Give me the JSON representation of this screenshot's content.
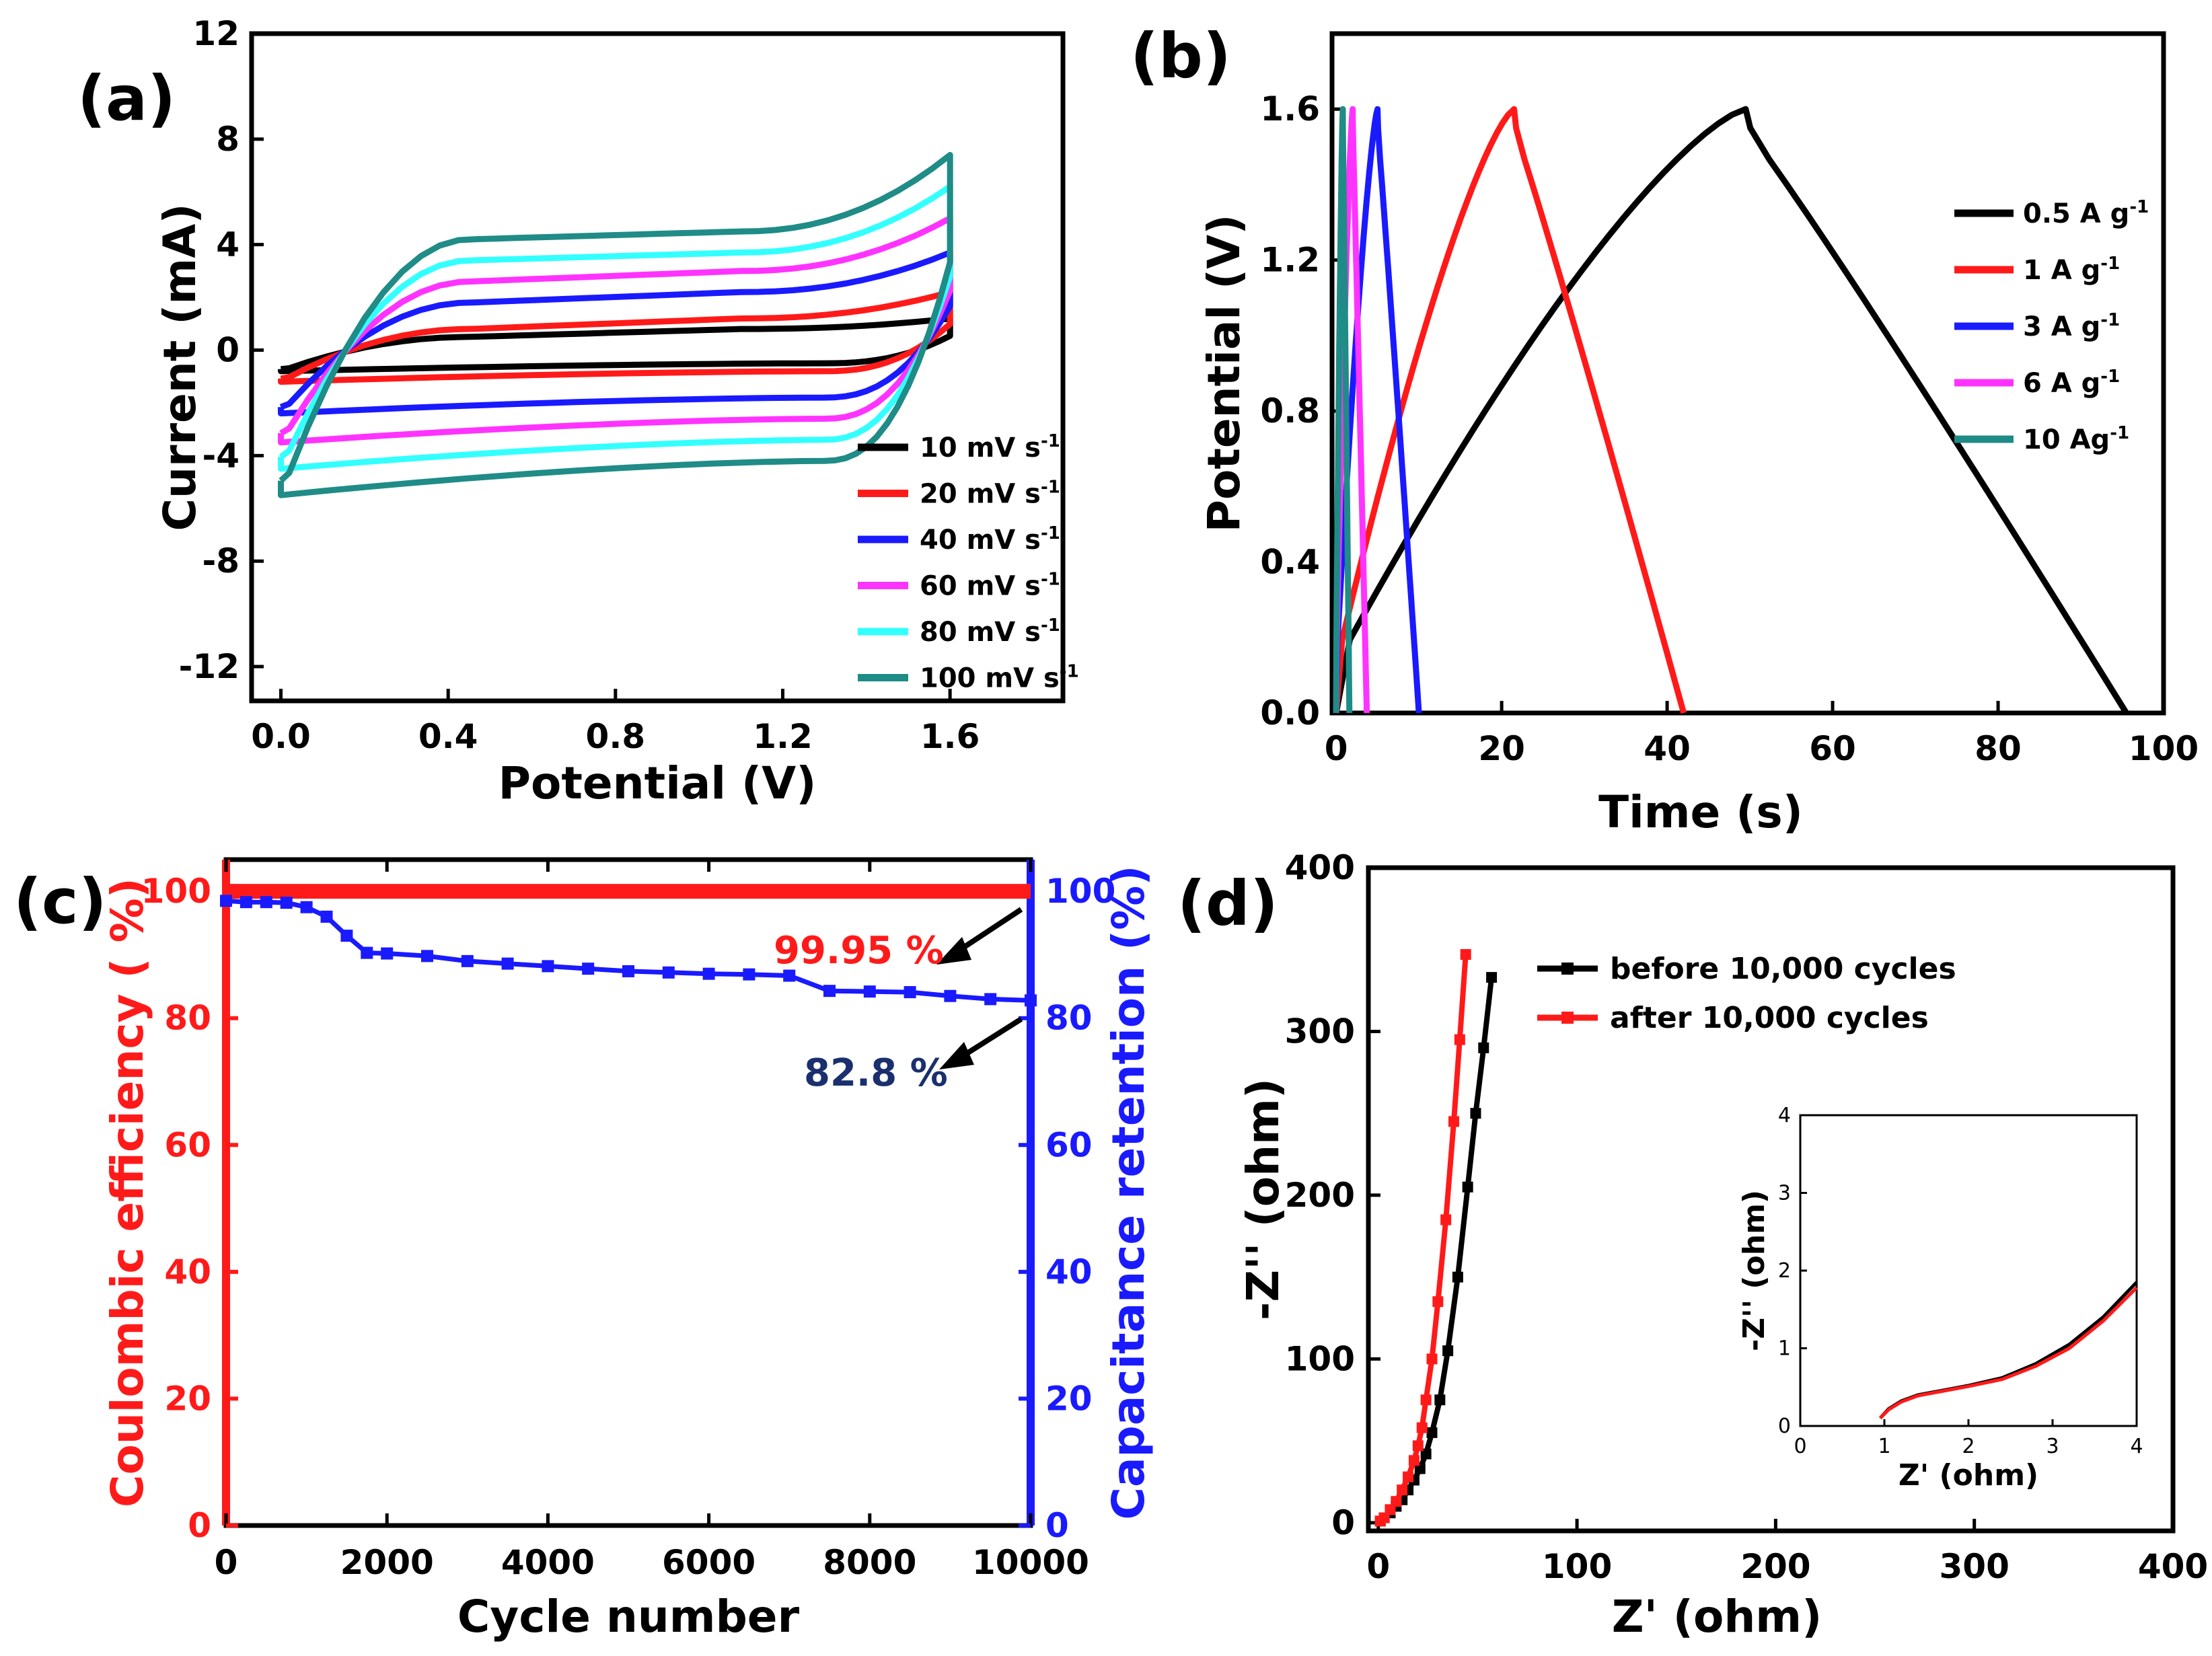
{
  "chart_data": [
    {
      "panel": "(a)",
      "type": "line",
      "title": "",
      "xlabel": "Potential (V)",
      "ylabel": "Current (mA)",
      "xlim": [
        -0.07,
        1.87
      ],
      "ylim": [
        -13.3,
        12
      ],
      "xticks": [
        0.0,
        0.4,
        0.8,
        1.2,
        1.6
      ],
      "xtick_labels": [
        "0.0",
        "0.4",
        "0.8",
        "1.2",
        "1.6"
      ],
      "yticks": [
        -12,
        -8,
        -4,
        0,
        4,
        8,
        12
      ],
      "ytick_labels": [
        "-12",
        "-8",
        "-4",
        "0",
        "4",
        "8",
        "12"
      ],
      "legend_position": "bottom-right",
      "legend_unit": "mV s",
      "legend_exponent": "-1",
      "series": [
        {
          "name": "10 mV s",
          "color": "#000000",
          "upper": [
            0.5,
            0.8,
            1.2
          ],
          "lower": [
            -0.8,
            -0.5,
            -0.5
          ]
        },
        {
          "name": "20 mV s",
          "color": "#ff1a1a",
          "upper": [
            0.8,
            1.2,
            2.2
          ],
          "lower": [
            -1.2,
            -0.9,
            -0.8
          ]
        },
        {
          "name": "40 mV s",
          "color": "#1a1aff",
          "upper": [
            1.8,
            2.2,
            3.7
          ],
          "lower": [
            -2.4,
            -2.0,
            -1.8
          ]
        },
        {
          "name": "60 mV s",
          "color": "#ff33ff",
          "upper": [
            2.6,
            3.0,
            5.0
          ],
          "lower": [
            -3.5,
            -3.0,
            -2.6
          ]
        },
        {
          "name": "80 mV s",
          "color": "#33ffff",
          "upper": [
            3.4,
            3.7,
            6.2
          ],
          "lower": [
            -4.5,
            -4.0,
            -3.4
          ]
        },
        {
          "name": "100 mV s",
          "color": "#1f8c87",
          "upper": [
            4.2,
            4.5,
            7.4
          ],
          "lower": [
            -5.5,
            -5.0,
            -4.2
          ]
        }
      ]
    },
    {
      "panel": "(b)",
      "type": "line",
      "title": "",
      "xlabel": "Time (s)",
      "ylabel": "Potential (V)",
      "xlim": [
        -0.5,
        100
      ],
      "ylim": [
        0,
        1.8
      ],
      "xticks": [
        0,
        20,
        40,
        60,
        80,
        100
      ],
      "xtick_labels": [
        "0",
        "20",
        "40",
        "60",
        "80",
        "100"
      ],
      "yticks": [
        0.0,
        0.4,
        0.8,
        1.2,
        1.6
      ],
      "ytick_labels": [
        "0.0",
        "0.4",
        "0.8",
        "1.2",
        "1.6"
      ],
      "legend_position": "top-right",
      "legend_exponent": "-1",
      "series": [
        {
          "name": "0.5 A g",
          "color": "#000000",
          "t_charge": 49.5,
          "t_end": 95.5
        },
        {
          "name": "1 A g",
          "color": "#ff1a1a",
          "t_charge": 21.5,
          "t_end": 42
        },
        {
          "name": "3 A g",
          "color": "#1a1aff",
          "t_charge": 5,
          "t_end": 10
        },
        {
          "name": "6 A g",
          "color": "#ff33ff",
          "t_charge": 2,
          "t_end": 3.7
        },
        {
          "name": "10 Ag",
          "color": "#1f8c87",
          "t_charge": 0.8,
          "t_end": 1.6
        }
      ]
    },
    {
      "panel": "(c)",
      "type": "line",
      "title": "",
      "xlabel": "Cycle number",
      "ylabel": "Coulombic efficiency ( %)",
      "ylabel_right": "Capacitance retention (%)",
      "xlim": [
        0,
        10000
      ],
      "ylim": [
        0,
        105
      ],
      "xticks": [
        0,
        2000,
        4000,
        6000,
        8000,
        10000
      ],
      "xtick_labels": [
        "0",
        "2000",
        "4000",
        "6000",
        "8000",
        "10000"
      ],
      "yticks": [
        0,
        20,
        40,
        60,
        80,
        100
      ],
      "ytick_labels": [
        "0",
        "20",
        "40",
        "60",
        "80",
        "100"
      ],
      "series": [
        {
          "name": "Coulombic efficiency",
          "color": "#ff1a1a",
          "x": [
            0,
            10000
          ],
          "y": [
            100,
            100
          ]
        },
        {
          "name": "Capacitance retention",
          "color": "#1a1aff",
          "x": [
            0,
            250,
            500,
            750,
            1000,
            1250,
            1500,
            1750,
            2000,
            2500,
            3000,
            3500,
            4000,
            4500,
            5000,
            5500,
            6000,
            6500,
            7000,
            7500,
            8000,
            8500,
            9000,
            9500,
            10000
          ],
          "y": [
            98.5,
            98.3,
            98.3,
            98.2,
            97.5,
            96,
            93,
            90.3,
            90.2,
            89.8,
            89,
            88.6,
            88.2,
            87.8,
            87.4,
            87.2,
            87,
            86.9,
            86.7,
            84.3,
            84.2,
            84.1,
            83.5,
            83,
            82.8
          ]
        }
      ],
      "annotations": [
        {
          "text": "99.95 %",
          "color": "#ff1a1a"
        },
        {
          "text": "82.8 %",
          "color": "#1a2f6e"
        }
      ]
    },
    {
      "panel": "(d)",
      "type": "scatter",
      "title": "",
      "xlabel": "Z' (ohm)",
      "ylabel": "-Z'' (ohm)",
      "xlim": [
        -5,
        400
      ],
      "ylim": [
        -5,
        400
      ],
      "xticks": [
        0,
        100,
        200,
        300,
        400
      ],
      "xtick_labels": [
        "0",
        "100",
        "200",
        "300",
        "400"
      ],
      "yticks": [
        0,
        100,
        200,
        300,
        400
      ],
      "ytick_labels": [
        "0",
        "100",
        "200",
        "300",
        "400"
      ],
      "legend_position": "top-right",
      "series": [
        {
          "name": "before 10,000 cycles",
          "color": "#000000",
          "x": [
            1,
            3,
            6,
            9,
            12,
            15,
            18,
            21,
            24,
            27,
            31,
            35,
            40,
            45,
            49,
            53,
            57
          ],
          "y": [
            1,
            3,
            6,
            10,
            14,
            20,
            26,
            33,
            42,
            55,
            75,
            105,
            150,
            205,
            250,
            290,
            333
          ]
        },
        {
          "name": "after 10,000 cycles",
          "color": "#ff1a1a",
          "x": [
            1,
            3,
            6,
            9,
            12,
            15,
            18,
            20,
            22,
            24,
            27,
            30,
            34,
            38,
            41,
            44
          ],
          "y": [
            1,
            3,
            8,
            13,
            20,
            28,
            38,
            47,
            58,
            75,
            100,
            135,
            185,
            245,
            295,
            347
          ]
        }
      ],
      "inset": {
        "xlabel": "Z' (ohm)",
        "ylabel": "-Z'' (ohm)",
        "xlim": [
          0,
          4
        ],
        "ylim": [
          0,
          4
        ],
        "xtick_labels": [
          "0",
          "1",
          "2",
          "3",
          "4"
        ],
        "ytick_labels": [
          "0",
          "1",
          "2",
          "3",
          "4"
        ],
        "series": [
          {
            "name": "before 10,000 cycles",
            "color": "#000000",
            "x": [
              0.95,
              1.05,
              1.2,
              1.4,
              1.7,
              2.0,
              2.4,
              2.8,
              3.2,
              3.6,
              4.0
            ],
            "y": [
              0.1,
              0.22,
              0.32,
              0.4,
              0.46,
              0.52,
              0.62,
              0.8,
              1.05,
              1.4,
              1.85
            ]
          },
          {
            "name": "after 10,000 cycles",
            "color": "#ff1a1a",
            "x": [
              0.95,
              1.05,
              1.2,
              1.4,
              1.7,
              2.0,
              2.4,
              2.8,
              3.2,
              3.6,
              4.0
            ],
            "y": [
              0.1,
              0.21,
              0.31,
              0.39,
              0.45,
              0.51,
              0.6,
              0.77,
              1.0,
              1.35,
              1.78
            ]
          }
        ]
      }
    }
  ]
}
